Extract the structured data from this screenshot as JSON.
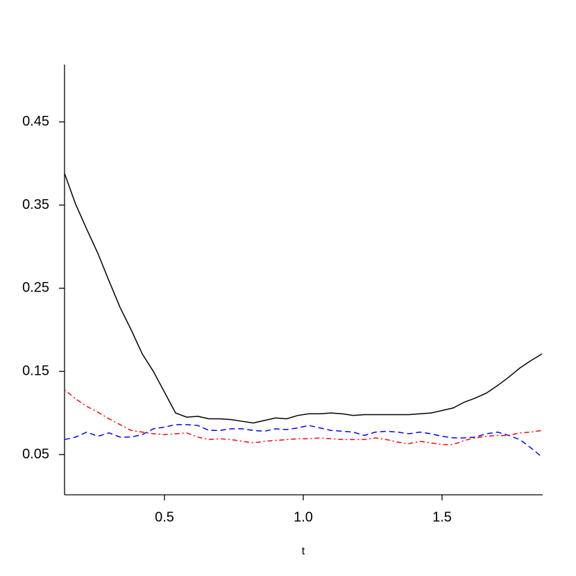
{
  "chart_data": {
    "type": "line",
    "x_label": "t",
    "x": [
      0.14,
      0.18,
      0.22,
      0.26,
      0.3,
      0.34,
      0.38,
      0.42,
      0.46,
      0.5,
      0.54,
      0.58,
      0.62,
      0.66,
      0.7,
      0.74,
      0.78,
      0.82,
      0.86,
      0.9,
      0.94,
      0.98,
      1.02,
      1.06,
      1.1,
      1.14,
      1.18,
      1.22,
      1.26,
      1.3,
      1.34,
      1.38,
      1.42,
      1.46,
      1.5,
      1.54,
      1.58,
      1.62,
      1.66,
      1.7,
      1.74,
      1.78,
      1.82,
      1.86
    ],
    "series": [
      {
        "color": "#000000",
        "dash": "solid",
        "values": [
          0.388,
          0.351,
          0.321,
          0.292,
          0.259,
          0.227,
          0.2,
          0.171,
          0.15,
          0.125,
          0.1,
          0.095,
          0.096,
          0.093,
          0.093,
          0.092,
          0.09,
          0.088,
          0.091,
          0.094,
          0.093,
          0.097,
          0.099,
          0.099,
          0.1,
          0.099,
          0.097,
          0.098,
          0.098,
          0.098,
          0.098,
          0.098,
          0.099,
          0.1,
          0.103,
          0.106,
          0.113,
          0.118,
          0.124,
          0.133,
          0.143,
          0.154,
          0.163,
          0.171
        ]
      },
      {
        "color": "#0000ff",
        "dash": "dashed",
        "values": [
          0.068,
          0.071,
          0.077,
          0.072,
          0.076,
          0.071,
          0.071,
          0.074,
          0.081,
          0.083,
          0.086,
          0.086,
          0.085,
          0.079,
          0.079,
          0.081,
          0.081,
          0.079,
          0.078,
          0.081,
          0.08,
          0.082,
          0.085,
          0.082,
          0.079,
          0.078,
          0.077,
          0.073,
          0.077,
          0.078,
          0.077,
          0.075,
          0.077,
          0.075,
          0.072,
          0.07,
          0.07,
          0.071,
          0.075,
          0.077,
          0.073,
          0.068,
          0.058,
          0.047
        ]
      },
      {
        "color": "#ff0000",
        "dash": "dashdot",
        "values": [
          0.128,
          0.117,
          0.108,
          0.101,
          0.093,
          0.086,
          0.079,
          0.077,
          0.075,
          0.074,
          0.075,
          0.076,
          0.071,
          0.068,
          0.069,
          0.068,
          0.066,
          0.064,
          0.066,
          0.067,
          0.068,
          0.069,
          0.069,
          0.07,
          0.069,
          0.068,
          0.068,
          0.068,
          0.07,
          0.068,
          0.065,
          0.063,
          0.066,
          0.064,
          0.062,
          0.062,
          0.067,
          0.07,
          0.072,
          0.073,
          0.073,
          0.076,
          0.077,
          0.079
        ]
      }
    ],
    "xlim": [
      0.14,
      1.8625
    ],
    "ylim": [
      0.0016,
      0.519
    ],
    "xticks": [
      0.5,
      {
        "value": 1,
        "label": "1.0"
      },
      1.5
    ],
    "yticks": [
      0.05,
      0.15,
      0.25,
      0.35,
      0.45
    ],
    "grid": false
  }
}
